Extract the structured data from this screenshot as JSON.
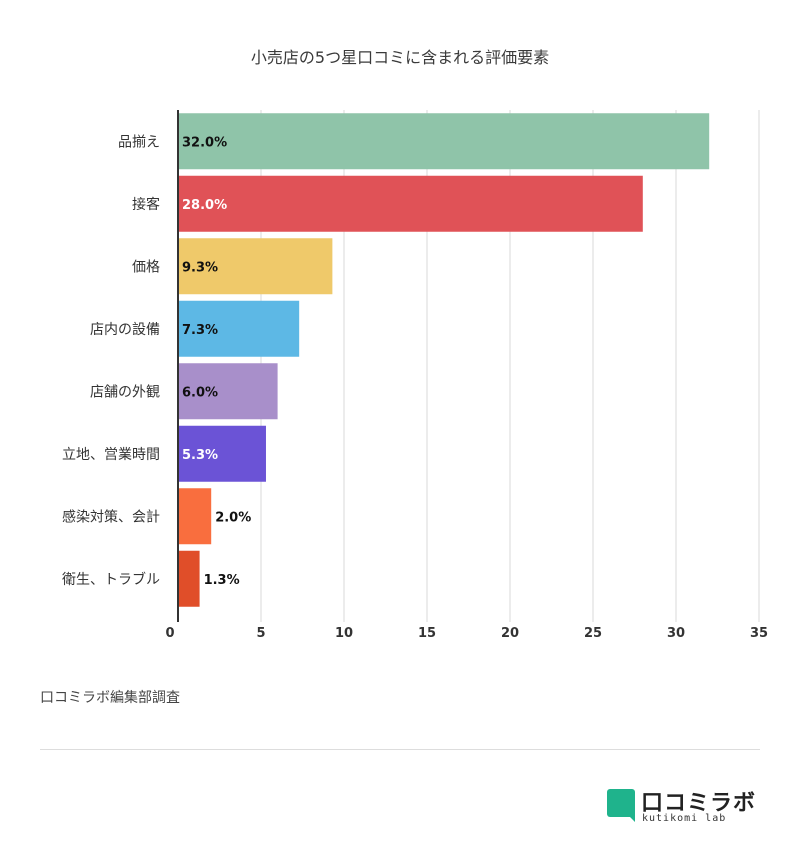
{
  "chart_data": {
    "type": "bar",
    "orientation": "horizontal",
    "title": "小売店の5つ星口コミに含まれる評価要素",
    "categories": [
      "品揃え",
      "接客",
      "価格",
      "店内の設備",
      "店舗の外観",
      "立地、営業時間",
      "感染対策、会計",
      "衛生、トラブル"
    ],
    "values": [
      32.0,
      28.0,
      9.3,
      7.3,
      6.0,
      5.3,
      2.0,
      1.3
    ],
    "value_labels": [
      "32.0%",
      "28.0%",
      "9.3%",
      "7.3%",
      "6.0%",
      "5.3%",
      "2.0%",
      "1.3%"
    ],
    "colors": [
      "#8fc4a9",
      "#e05257",
      "#efc96a",
      "#5db8e5",
      "#a88fca",
      "#6b53d6",
      "#f96e3e",
      "#e04e29"
    ],
    "label_colors": [
      "#111111",
      "#ffffff",
      "#111111",
      "#111111",
      "#111111",
      "#ffffff",
      "#111111",
      "#111111"
    ],
    "xlim": [
      0,
      35
    ],
    "xticks": [
      0,
      5,
      10,
      15,
      20,
      25,
      30,
      35
    ],
    "xlabel": "",
    "ylabel": "",
    "grid": true,
    "legend": "none"
  },
  "source_note": "口コミラボ編集部調査",
  "logo": {
    "name": "口コミラボ",
    "sub": "kutikomi lab",
    "color": "#1fb38c",
    "icon": "speech-bubble-icon"
  }
}
